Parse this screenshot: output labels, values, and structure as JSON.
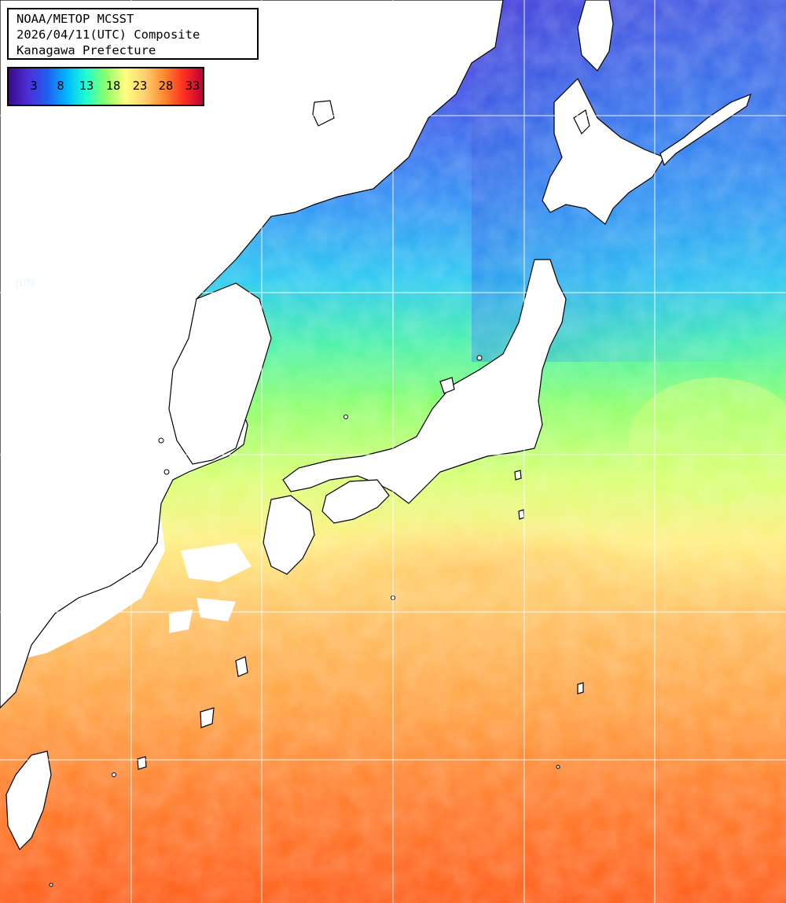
{
  "header": {
    "line1": "NOAA/METOP MCSST",
    "line2": "2026/04/11(UTC) Composite",
    "line3": "Kanagawa Prefecture"
  },
  "legend": {
    "ticks": [
      "3",
      "8",
      "13",
      "18",
      "23",
      "28",
      "33"
    ],
    "color_scale": [
      "#3a0a8a",
      "#4b2fd6",
      "#2060f0",
      "#00b8ff",
      "#20ffd0",
      "#8dff6a",
      "#ffff80",
      "#ffd070",
      "#ff8a30",
      "#ff3020",
      "#c0003a"
    ]
  },
  "map": {
    "grid_label": "JUN",
    "land_color": "#ffffff",
    "coast_color": "#000000",
    "grid_color": "#ffffff"
  }
}
